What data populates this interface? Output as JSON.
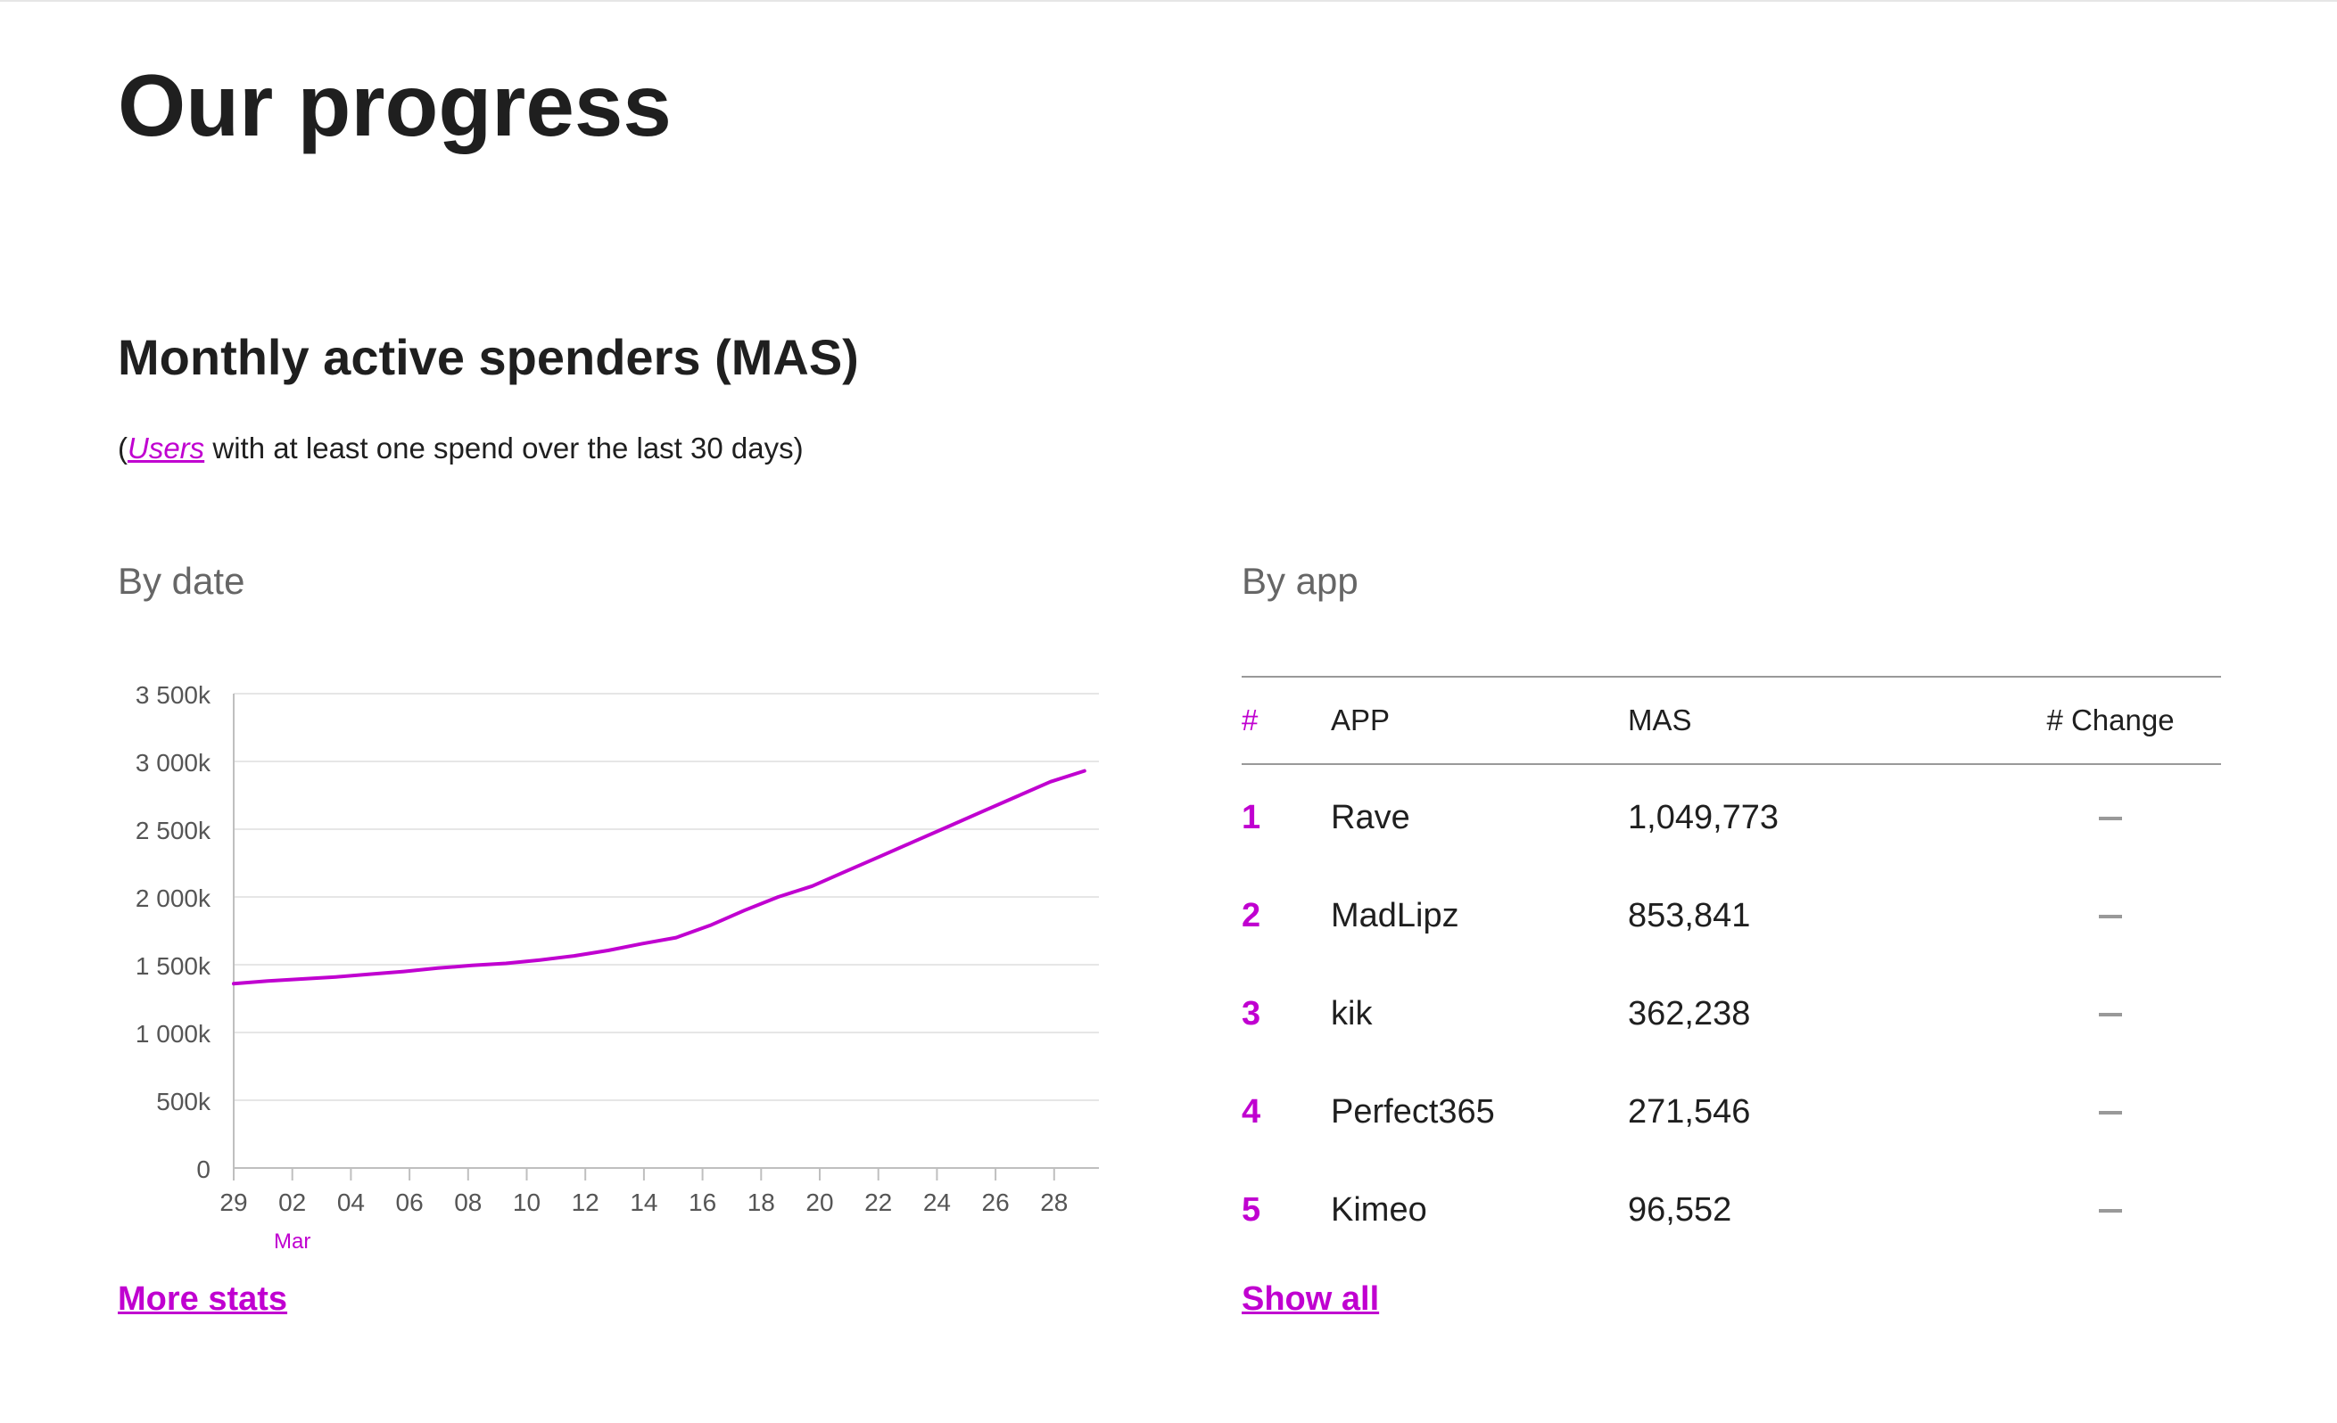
{
  "page": {
    "title": "Our progress"
  },
  "section": {
    "title": "Monthly active spenders (MAS)",
    "desc_open": "(",
    "desc_link": "Users",
    "desc_rest": " with at least one spend over the last 30 days)"
  },
  "by_date": {
    "heading": "By date",
    "more_link": "More stats"
  },
  "by_app": {
    "heading": "By app",
    "show_all": "Show all",
    "headers": {
      "rank": "#",
      "app": "APP",
      "mas": "MAS",
      "change": "# Change"
    },
    "rows": [
      {
        "rank": "1",
        "app": "Rave",
        "mas": "1,049,773",
        "change": "–"
      },
      {
        "rank": "2",
        "app": "MadLipz",
        "mas": "853,841",
        "change": "–"
      },
      {
        "rank": "3",
        "app": "kik",
        "mas": "362,238",
        "change": "–"
      },
      {
        "rank": "4",
        "app": "Perfect365",
        "mas": "271,546",
        "change": "–"
      },
      {
        "rank": "5",
        "app": "Kimeo",
        "mas": "96,552",
        "change": "–"
      }
    ]
  },
  "colors": {
    "accent": "#c000d0",
    "line": "#c000d0",
    "grid": "#e6e6e6",
    "axis": "#bfbfbf",
    "muted": "#666666"
  },
  "chart_data": {
    "type": "line",
    "x_tick_labels": [
      "29",
      "02",
      "04",
      "06",
      "08",
      "10",
      "12",
      "14",
      "16",
      "18",
      "20",
      "22",
      "24",
      "26",
      "28"
    ],
    "x_month_label": "Mar",
    "y_tick_labels": [
      "0",
      "500k",
      "1 000k",
      "1 500k",
      "2 000k",
      "2 500k",
      "3 000k",
      "3 500k"
    ],
    "ylim": [
      0,
      3500000
    ],
    "series": [
      {
        "values": [
          1360000,
          1380000,
          1395000,
          1410000,
          1430000,
          1450000,
          1475000,
          1495000,
          1510000,
          1535000,
          1565000,
          1605000,
          1655000,
          1700000,
          1790000,
          1900000,
          2000000,
          2080000,
          2190000,
          2300000,
          2410000,
          2520000,
          2630000,
          2740000,
          2850000,
          2930000
        ]
      }
    ]
  }
}
